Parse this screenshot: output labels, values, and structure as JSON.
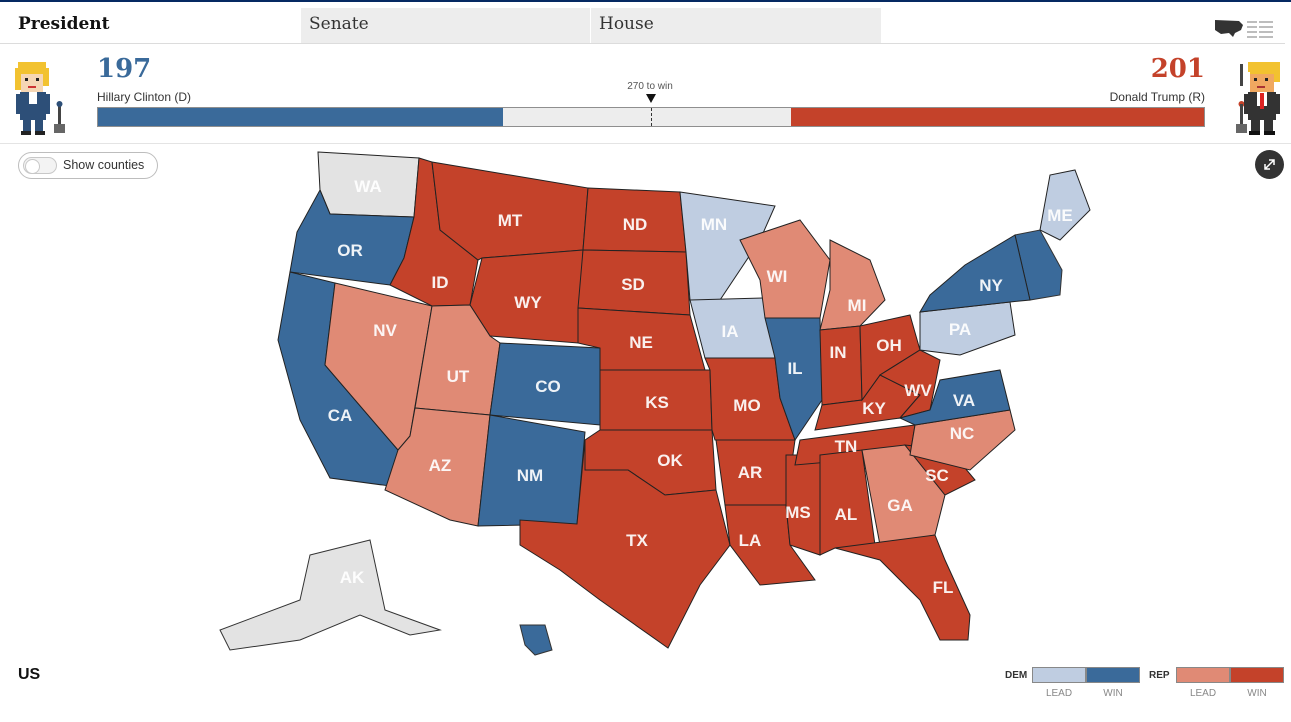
{
  "tabs": [
    {
      "label": "President",
      "active": true
    },
    {
      "label": "Senate",
      "active": false
    },
    {
      "label": "House",
      "active": false
    }
  ],
  "view_icons": [
    "us-map-icon",
    "list-view-icon"
  ],
  "race": {
    "dem": {
      "votes": "197",
      "name": "Hillary Clinton (D)",
      "color": "#3a6a9a",
      "electoral_votes": 197
    },
    "rep": {
      "votes": "201",
      "name": "Donald Trump (R)",
      "color": "#c4422a",
      "electoral_votes": 201
    },
    "threshold_label": "270 to win",
    "threshold": 270,
    "total": 538
  },
  "toggle": {
    "label": "Show counties",
    "on": false
  },
  "region_label": "US",
  "states": [
    {
      "abbr": "WA",
      "status": "undecided"
    },
    {
      "abbr": "OR",
      "status": "dem-win"
    },
    {
      "abbr": "CA",
      "status": "dem-win"
    },
    {
      "abbr": "NV",
      "status": "rep-lead"
    },
    {
      "abbr": "ID",
      "status": "rep-win"
    },
    {
      "abbr": "MT",
      "status": "rep-win"
    },
    {
      "abbr": "WY",
      "status": "rep-win"
    },
    {
      "abbr": "UT",
      "status": "rep-lead"
    },
    {
      "abbr": "AZ",
      "status": "rep-lead"
    },
    {
      "abbr": "CO",
      "status": "dem-win"
    },
    {
      "abbr": "NM",
      "status": "dem-win"
    },
    {
      "abbr": "ND",
      "status": "rep-win"
    },
    {
      "abbr": "SD",
      "status": "rep-win"
    },
    {
      "abbr": "NE",
      "status": "rep-win"
    },
    {
      "abbr": "KS",
      "status": "rep-win"
    },
    {
      "abbr": "OK",
      "status": "rep-win"
    },
    {
      "abbr": "TX",
      "status": "rep-win"
    },
    {
      "abbr": "MN",
      "status": "dem-lead"
    },
    {
      "abbr": "IA",
      "status": "dem-lead"
    },
    {
      "abbr": "MO",
      "status": "rep-win"
    },
    {
      "abbr": "AR",
      "status": "rep-win"
    },
    {
      "abbr": "LA",
      "status": "rep-win"
    },
    {
      "abbr": "WI",
      "status": "rep-lead"
    },
    {
      "abbr": "IL",
      "status": "dem-win"
    },
    {
      "abbr": "MS",
      "status": "rep-win"
    },
    {
      "abbr": "MI",
      "status": "rep-lead"
    },
    {
      "abbr": "IN",
      "status": "rep-win"
    },
    {
      "abbr": "KY",
      "status": "rep-win"
    },
    {
      "abbr": "TN",
      "status": "rep-win"
    },
    {
      "abbr": "AL",
      "status": "rep-win"
    },
    {
      "abbr": "OH",
      "status": "rep-win"
    },
    {
      "abbr": "WV",
      "status": "rep-win"
    },
    {
      "abbr": "GA",
      "status": "rep-lead"
    },
    {
      "abbr": "FL",
      "status": "rep-win"
    },
    {
      "abbr": "SC",
      "status": "rep-win"
    },
    {
      "abbr": "NC",
      "status": "rep-lead"
    },
    {
      "abbr": "VA",
      "status": "dem-win"
    },
    {
      "abbr": "PA",
      "status": "dem-lead"
    },
    {
      "abbr": "NY",
      "status": "dem-win"
    },
    {
      "abbr": "ME",
      "status": "dem-lead"
    },
    {
      "abbr": "AK",
      "status": "undecided"
    },
    {
      "abbr": "HI",
      "status": "dem-win"
    }
  ],
  "status_colors": {
    "dem-win": "#3a6a9a",
    "dem-lead": "#bfcde1",
    "rep-win": "#c4422a",
    "rep-lead": "#e08a75",
    "undecided": "#e3e3e3"
  },
  "legend": {
    "dem_label": "DEM",
    "rep_label": "REP",
    "lead_label": "LEAD",
    "win_label": "WIN"
  }
}
